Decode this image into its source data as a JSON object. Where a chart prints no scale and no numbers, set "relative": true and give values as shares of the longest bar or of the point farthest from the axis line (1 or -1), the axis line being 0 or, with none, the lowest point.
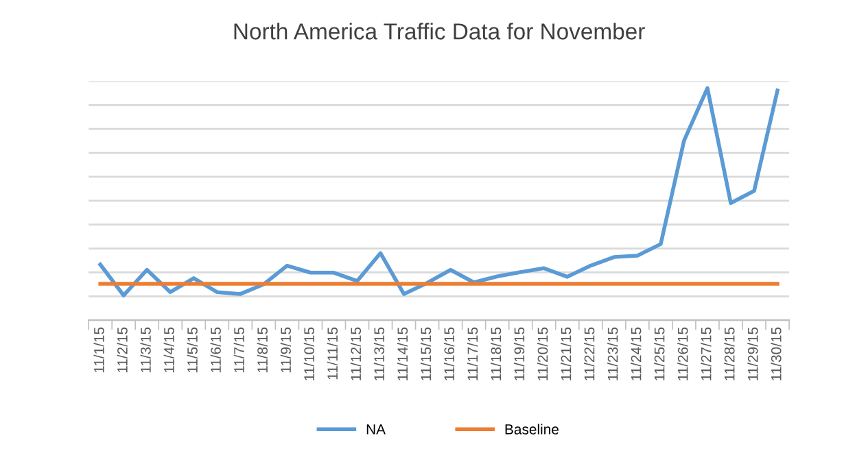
{
  "chart_data": {
    "type": "line",
    "title": "North America Traffic Data for November",
    "relative": true,
    "grid": "y",
    "legend": "bottom",
    "marker": "none",
    "line_style": "solid",
    "categories": [
      "11/1/15",
      "11/2/15",
      "11/3/15",
      "11/4/15",
      "11/5/15",
      "11/6/15",
      "11/7/15",
      "11/8/15",
      "11/9/15",
      "11/10/15",
      "11/11/15",
      "11/12/15",
      "11/13/15",
      "11/14/15",
      "11/15/15",
      "11/16/15",
      "11/17/15",
      "11/18/15",
      "11/19/15",
      "11/20/15",
      "11/21/15",
      "11/22/15",
      "11/23/15",
      "11/24/15",
      "11/25/15",
      "11/26/15",
      "11/27/15",
      "11/28/15",
      "11/29/15",
      "11/30/15"
    ],
    "series": [
      {
        "name": "NA",
        "color": "#5b9bd5",
        "values": [
          0.24,
          0.107,
          0.217,
          0.121,
          0.181,
          0.121,
          0.113,
          0.155,
          0.235,
          0.205,
          0.205,
          0.169,
          0.289,
          0.113,
          0.161,
          0.217,
          0.163,
          0.189,
          0.207,
          0.224,
          0.187,
          0.235,
          0.272,
          0.278,
          0.328,
          0.774,
          1,
          0.505,
          0.557,
          0.99
        ]
      },
      {
        "name": "Baseline",
        "color": "#ed7d31",
        "values": [
          0.157,
          0.157,
          0.157,
          0.157,
          0.157,
          0.157,
          0.157,
          0.157,
          0.157,
          0.157,
          0.157,
          0.157,
          0.157,
          0.157,
          0.157,
          0.157,
          0.157,
          0.157,
          0.157,
          0.157,
          0.157,
          0.157,
          0.157,
          0.157,
          0.157,
          0.157,
          0.157,
          0.157,
          0.157,
          0.157
        ]
      }
    ]
  }
}
